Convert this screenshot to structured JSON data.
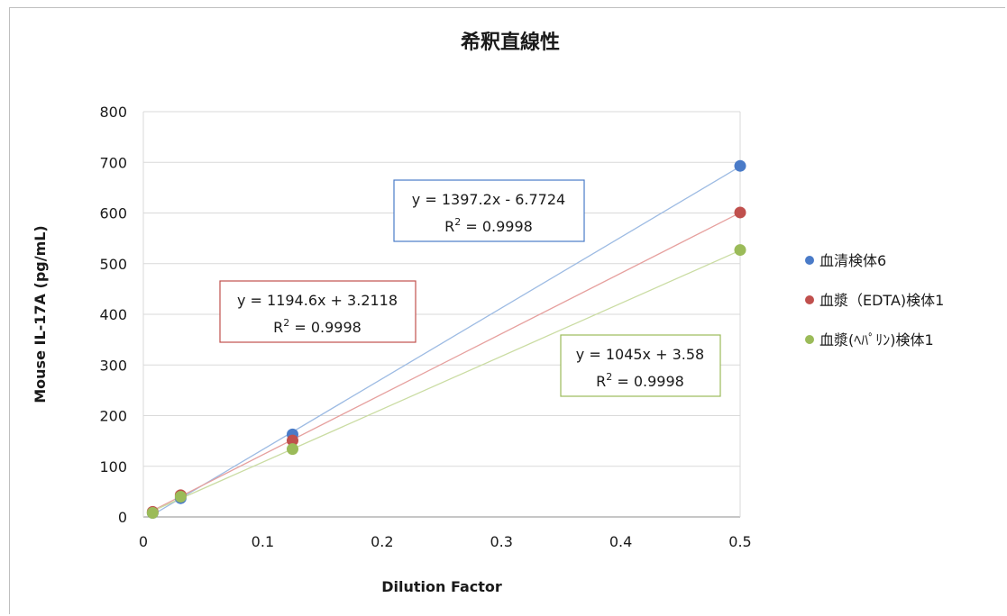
{
  "chart_data": {
    "type": "scatter",
    "title": "希釈直線性",
    "xlabel": "Dilution Factor",
    "ylabel": "Mouse IL-17A (pg/mL)",
    "xlim": [
      0,
      0.5
    ],
    "ylim": [
      0,
      800
    ],
    "x_ticks": [
      "0",
      "0.1",
      "0.2",
      "0.3",
      "0.4",
      "0.5"
    ],
    "y_ticks": [
      "0",
      "100",
      "200",
      "300",
      "400",
      "500",
      "600",
      "700",
      "800"
    ],
    "grid": "horizontal",
    "legend_position": "right",
    "series": [
      {
        "name": "血清検体6",
        "color": "#4a7bc8",
        "trend_color": "#9dbbe3",
        "x": [
          0.0078125,
          0.03125,
          0.125,
          0.5
        ],
        "y": [
          8,
          37,
          163,
          693
        ],
        "trendline": {
          "slope": 1397.2,
          "intercept": -6.7724,
          "equation": "y = 1397.2x - 6.7724",
          "r2_label": "R",
          "r2_sup": "2",
          "r2_value": " = 0.9998"
        }
      },
      {
        "name": "血漿（EDTA)検体1",
        "color": "#c0504d",
        "trend_color": "#e6a09e",
        "x": [
          0.0078125,
          0.03125,
          0.125,
          0.5
        ],
        "y": [
          10,
          43,
          151,
          601
        ],
        "trendline": {
          "slope": 1194.6,
          "intercept": 3.2118,
          "equation": "y = 1194.6x + 3.2118",
          "r2_label": "R",
          "r2_sup": "2",
          "r2_value": " = 0.9998"
        }
      },
      {
        "name": "血漿(ﾍﾊﾟﾘﾝ)検体1",
        "color": "#9bbb59",
        "trend_color": "#cadca2",
        "x": [
          0.0078125,
          0.03125,
          0.125,
          0.5
        ],
        "y": [
          8,
          40,
          134,
          527
        ],
        "trendline": {
          "slope": 1045,
          "intercept": 3.58,
          "equation": "y = 1045x + 3.58",
          "r2_label": "R",
          "r2_sup": "2",
          "r2_value": " = 0.9998"
        }
      }
    ]
  }
}
